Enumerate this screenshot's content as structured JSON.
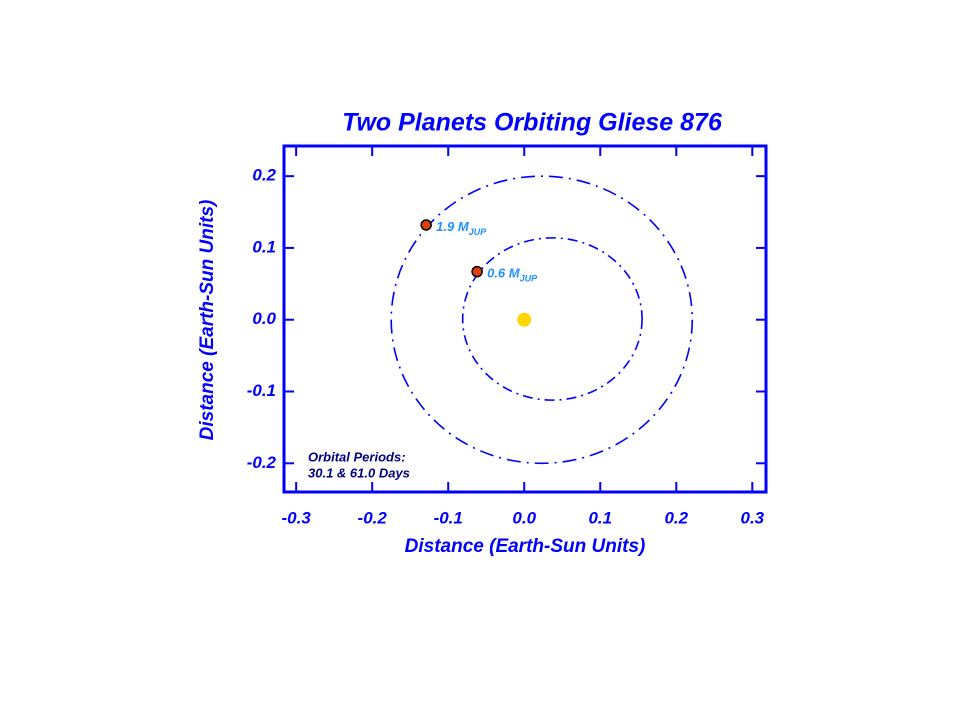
{
  "chart_data": {
    "type": "orbit",
    "title": "Two Planets Orbiting Gliese 876",
    "xlabel": "Distance  (Earth-Sun Units)",
    "ylabel": "Distance  (Earth-Sun Units)",
    "xlim": [
      -0.316,
      0.318
    ],
    "ylim": [
      -0.24,
      0.242
    ],
    "xticks": [
      -0.3,
      -0.2,
      -0.1,
      {
        "value": 0,
        "label": "0.0"
      },
      0.1,
      0.2,
      0.3
    ],
    "yticks": [
      -0.2,
      -0.1,
      {
        "value": 0,
        "label": "0.0"
      },
      0.1,
      0.2
    ],
    "axis_color": "#0000ff",
    "star": {
      "x": 0,
      "y": 0,
      "color": "#ffd700"
    },
    "orbits": [
      {
        "cx": 0.023,
        "cy": 0,
        "rx": 0.198,
        "ry": 0.2,
        "color": "#0000ff"
      },
      {
        "cx": 0.037,
        "cy": 0.001,
        "rx": 0.118,
        "ry": 0.113,
        "color": "#0000ff"
      }
    ],
    "planets": [
      {
        "label": "1.9 M",
        "subscript": "JUP",
        "x": -0.129,
        "y": 0.132,
        "color": "#e04010",
        "label_color": "#1e90ff"
      },
      {
        "label": "0.6 M",
        "subscript": "JUP",
        "x": -0.062,
        "y": 0.067,
        "color": "#e04010",
        "label_color": "#1e90ff"
      }
    ],
    "annotation": [
      "Orbital Periods:",
      "30.1 & 61.0 Days"
    ]
  }
}
